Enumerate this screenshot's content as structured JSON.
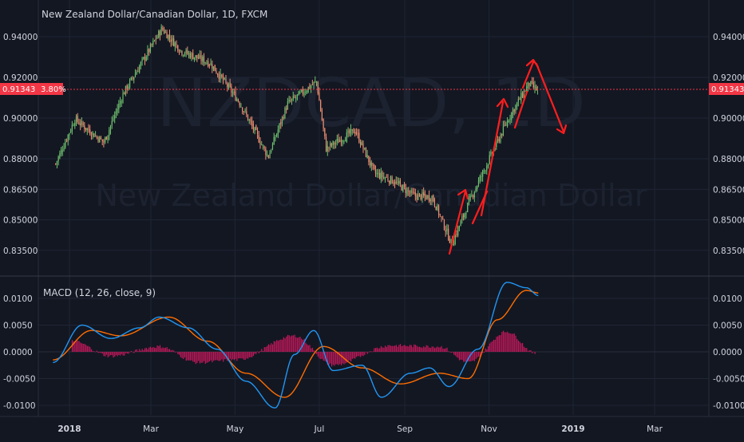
{
  "header": {
    "title": "New Zealand Dollar/Canadian Dollar, 1D, FXCM"
  },
  "watermark": {
    "symbol": "NZDCAD, 1D",
    "name": "New Zealand Dollar/Canadian Dollar"
  },
  "price_badge": {
    "price": "0.91343",
    "change": "3.80%",
    "color": "#f23645"
  },
  "macd": {
    "label": "MACD (12, 26, close, 9)",
    "macd_color": "#2196f3",
    "signal_color": "#ff6d00",
    "hist_color": "#c2185b"
  },
  "colors": {
    "background": "#131722",
    "grid": "#1f2535",
    "up": "#6ec16e",
    "down": "#ef8f72",
    "annotation": "#ff1e1e"
  },
  "chart_data": [
    {
      "type": "candlestick",
      "title": "New Zealand Dollar/Canadian Dollar, 1D, FXCM",
      "y_ticks": [
        "0.94000",
        "0.92000",
        "0.90000",
        "0.88000",
        "0.86500",
        "0.85000",
        "0.83500"
      ],
      "x_ticks": [
        "2018",
        "Mar",
        "May",
        "Jul",
        "Sep",
        "Nov",
        "2019",
        "Mar"
      ],
      "ylim": [
        0.829,
        0.952
      ],
      "last_price": 0.91343,
      "path_note_points": [
        [
          "2017-12-22",
          0.8775
        ],
        [
          "2018-01-05",
          0.8995
        ],
        [
          "2018-01-26",
          0.888
        ],
        [
          "2018-02-09",
          0.912
        ],
        [
          "2018-02-23",
          0.928
        ],
        [
          "2018-03-09",
          0.944
        ],
        [
          "2018-03-23",
          0.933
        ],
        [
          "2018-04-13",
          0.927
        ],
        [
          "2018-05-04",
          0.908
        ],
        [
          "2018-05-25",
          0.881
        ],
        [
          "2018-06-08",
          0.907
        ],
        [
          "2018-06-29",
          0.918
        ],
        [
          "2018-07-06",
          0.885
        ],
        [
          "2018-07-27",
          0.894
        ],
        [
          "2018-08-10",
          0.873
        ],
        [
          "2018-08-24",
          0.869
        ],
        [
          "2018-09-07",
          0.862
        ],
        [
          "2018-09-21",
          0.861
        ],
        [
          "2018-10-05",
          0.838
        ],
        [
          "2018-10-19",
          0.861
        ],
        [
          "2018-11-02",
          0.881
        ],
        [
          "2018-11-16",
          0.901
        ],
        [
          "2018-11-30",
          0.917
        ],
        [
          "2018-12-07",
          0.913
        ]
      ]
    },
    {
      "type": "line",
      "title": "MACD (12, 26, close, 9)",
      "y_ticks": [
        "0.0100",
        "0.0050",
        "0.0000",
        "-0.0050",
        "-0.0100"
      ],
      "ylim": [
        -0.012,
        0.0135
      ],
      "series": [
        {
          "name": "MACD",
          "values": [
            [
              "2017-12-20",
              -0.002
            ],
            [
              "2018-01-10",
              0.005
            ],
            [
              "2018-01-31",
              0.0025
            ],
            [
              "2018-02-21",
              0.0045
            ],
            [
              "2018-03-07",
              0.0065
            ],
            [
              "2018-03-28",
              0.0045
            ],
            [
              "2018-04-18",
              0.0005
            ],
            [
              "2018-05-09",
              -0.0055
            ],
            [
              "2018-05-30",
              -0.0105
            ],
            [
              "2018-06-13",
              -0.0005
            ],
            [
              "2018-06-27",
              0.004
            ],
            [
              "2018-07-11",
              -0.0035
            ],
            [
              "2018-08-01",
              -0.0025
            ],
            [
              "2018-08-15",
              -0.0085
            ],
            [
              "2018-09-05",
              -0.004
            ],
            [
              "2018-09-19",
              -0.003
            ],
            [
              "2018-10-03",
              -0.0065
            ],
            [
              "2018-10-24",
              0.0005
            ],
            [
              "2018-11-14",
              0.013
            ],
            [
              "2018-11-28",
              0.012
            ],
            [
              "2018-12-07",
              0.0105
            ]
          ]
        },
        {
          "name": "Signal",
          "values": [
            [
              "2017-12-20",
              -0.0015
            ],
            [
              "2018-01-17",
              0.004
            ],
            [
              "2018-02-07",
              0.003
            ],
            [
              "2018-03-14",
              0.0065
            ],
            [
              "2018-04-11",
              0.002
            ],
            [
              "2018-05-09",
              -0.004
            ],
            [
              "2018-06-06",
              -0.0085
            ],
            [
              "2018-07-04",
              0.001
            ],
            [
              "2018-08-01",
              -0.003
            ],
            [
              "2018-08-29",
              -0.006
            ],
            [
              "2018-09-26",
              -0.004
            ],
            [
              "2018-10-17",
              -0.005
            ],
            [
              "2018-11-07",
              0.006
            ],
            [
              "2018-11-28",
              0.0115
            ],
            [
              "2018-12-07",
              0.011
            ]
          ]
        },
        {
          "name": "Histogram",
          "values": [
            [
              "2018-01-03",
              0.002
            ],
            [
              "2018-01-31",
              -0.0008
            ],
            [
              "2018-03-07",
              0.001
            ],
            [
              "2018-04-04",
              -0.002
            ],
            [
              "2018-05-02",
              -0.0015
            ],
            [
              "2018-06-13",
              0.003
            ],
            [
              "2018-07-11",
              -0.0025
            ],
            [
              "2018-08-22",
              0.0012
            ],
            [
              "2018-09-26",
              0.001
            ],
            [
              "2018-10-17",
              -0.002
            ],
            [
              "2018-11-14",
              0.0038
            ],
            [
              "2018-12-05",
              -0.0003
            ]
          ]
        }
      ]
    }
  ],
  "annotations": {
    "label": ""
  }
}
